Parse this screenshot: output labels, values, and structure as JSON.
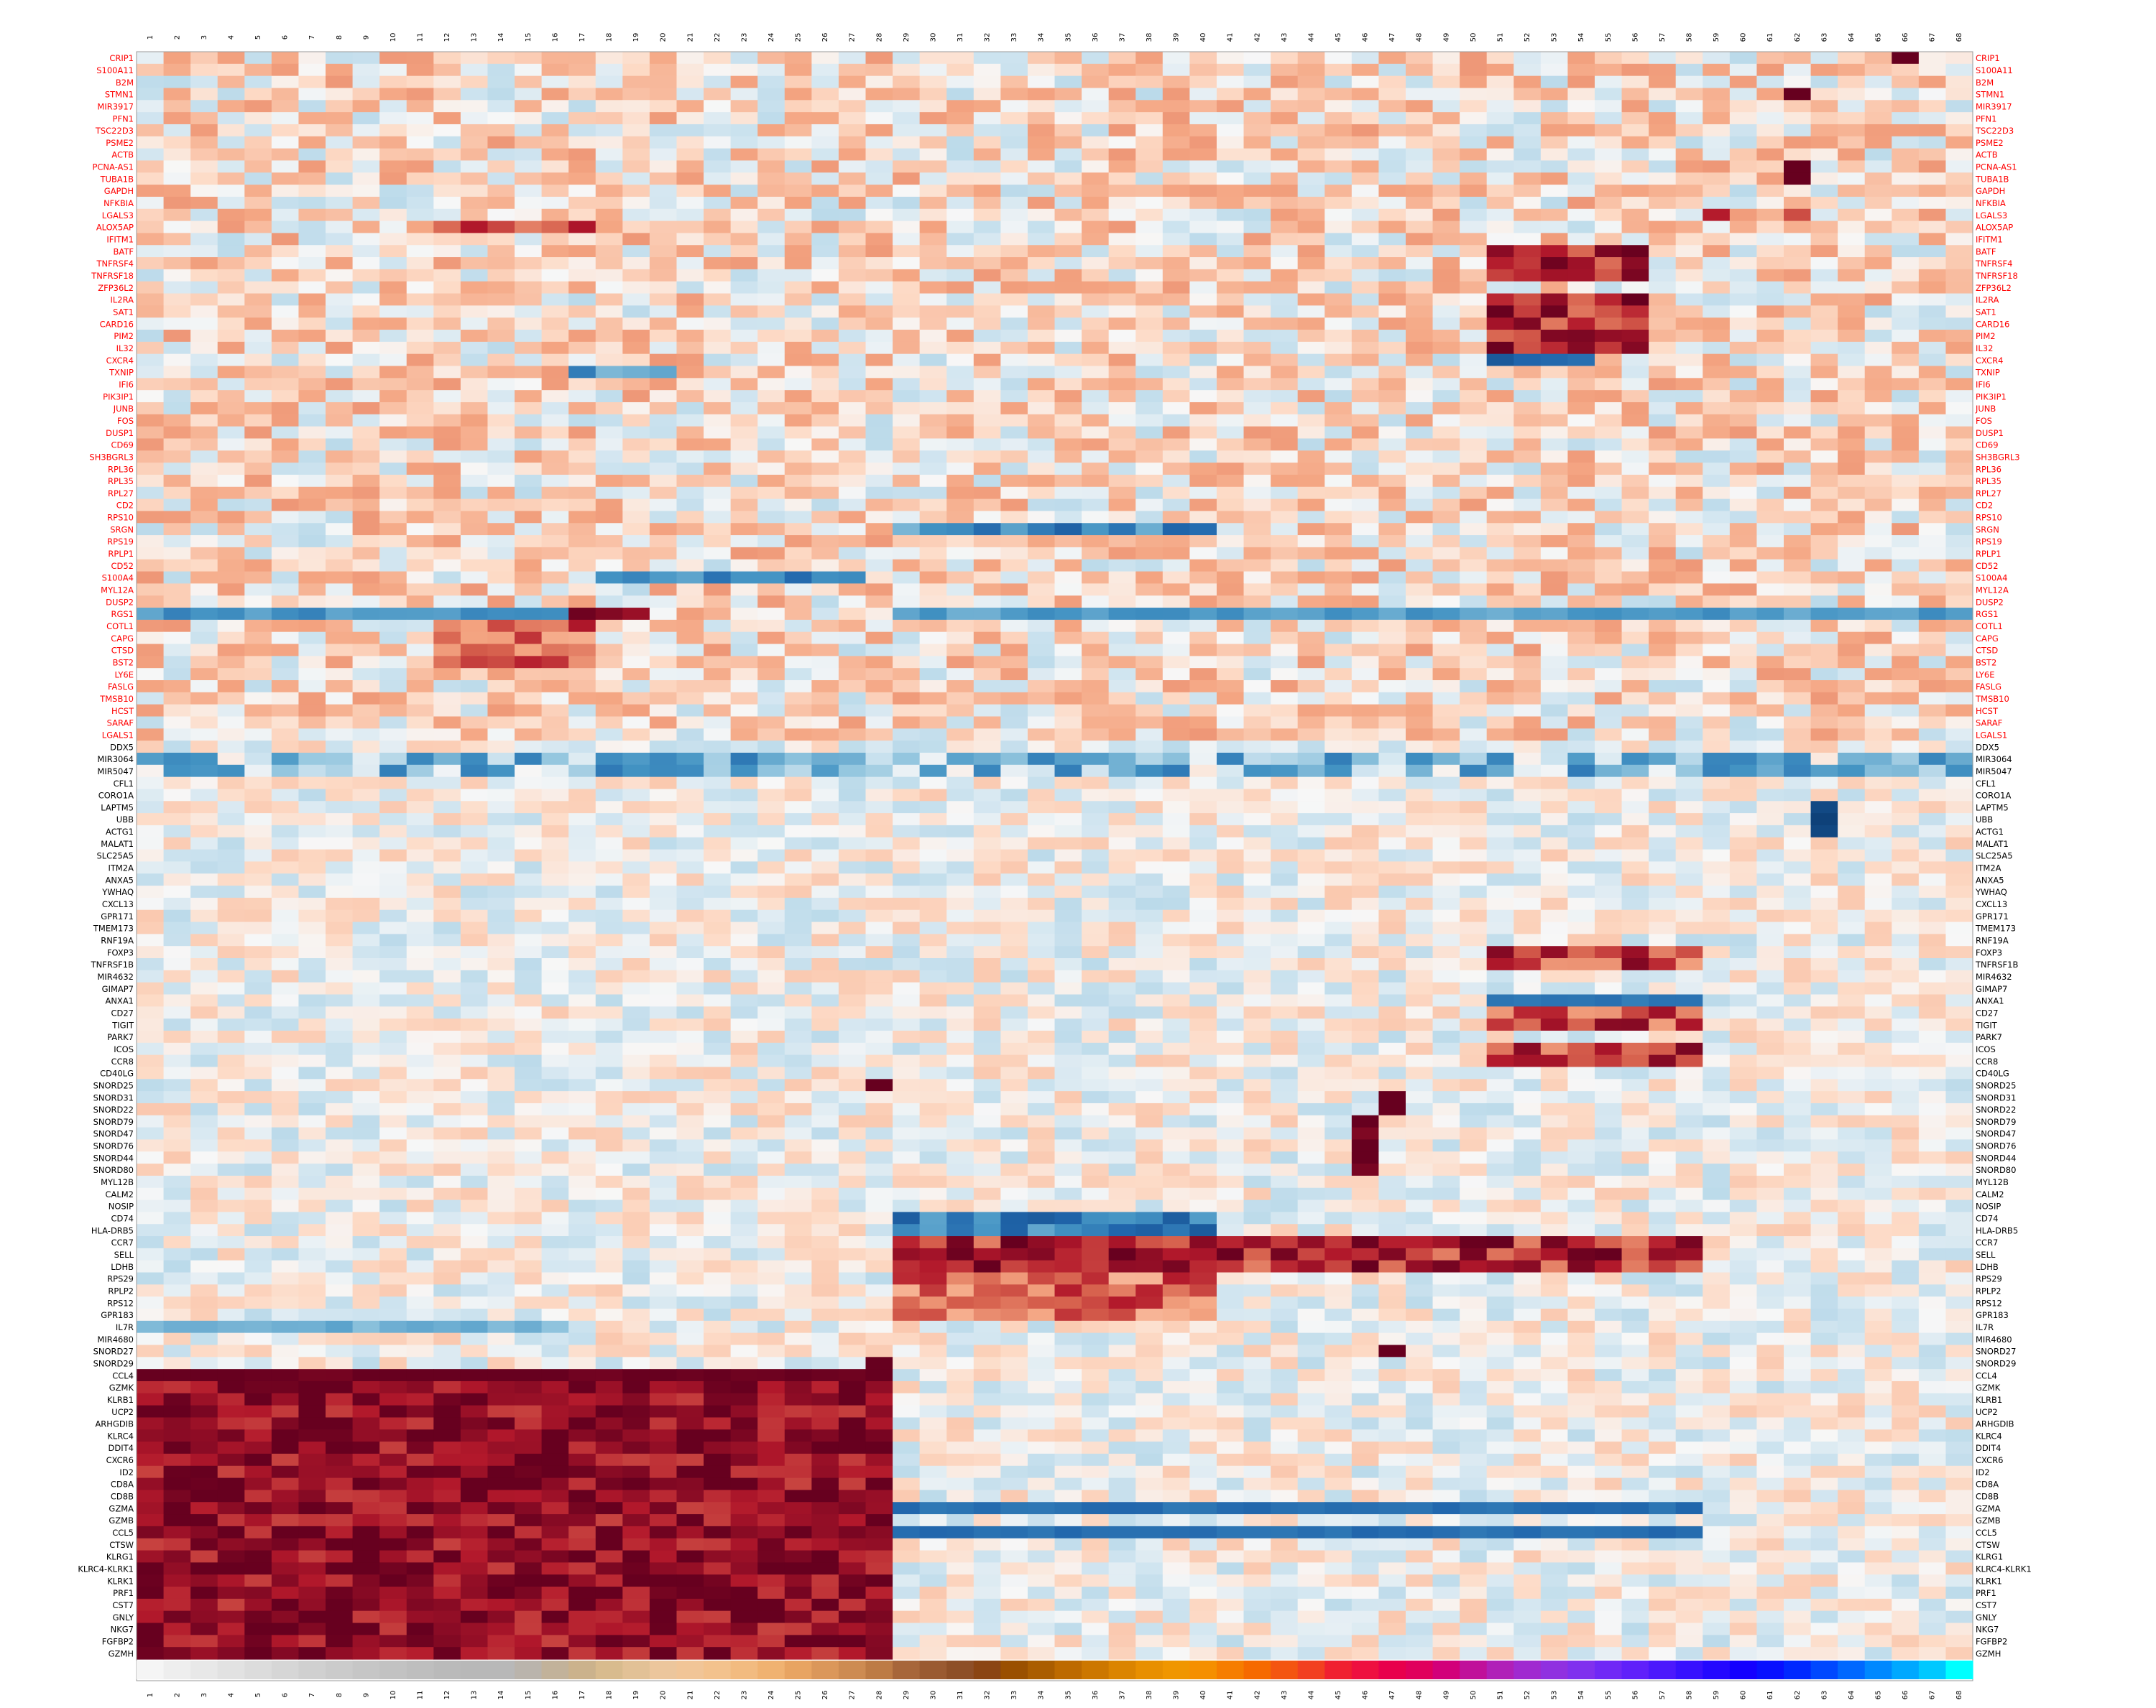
{
  "chart_data": {
    "type": "heatmap",
    "title": "",
    "xlabel": "",
    "ylabel": "",
    "columns": [
      "1",
      "2",
      "3",
      "4",
      "5",
      "6",
      "7",
      "8",
      "9",
      "10",
      "11",
      "12",
      "13",
      "14",
      "15",
      "16",
      "17",
      "18",
      "19",
      "20",
      "21",
      "22",
      "23",
      "24",
      "25",
      "26",
      "27",
      "28",
      "29",
      "30",
      "31",
      "32",
      "33",
      "34",
      "35",
      "36",
      "37",
      "38",
      "39",
      "40",
      "41",
      "42",
      "43",
      "44",
      "45",
      "46",
      "47",
      "48",
      "49",
      "50",
      "51",
      "52",
      "53",
      "54",
      "55",
      "56",
      "57",
      "58",
      "59",
      "60",
      "61",
      "62",
      "63",
      "64",
      "65",
      "66",
      "67",
      "68"
    ],
    "genes_red": [
      "CRIP1",
      "S100A11",
      "B2M",
      "STMN1",
      "MIR3917",
      "PFN1",
      "TSC22D3",
      "PSME2",
      "ACTB",
      "PCNA-AS1",
      "TUBA1B",
      "GAPDH",
      "NFKBIA",
      "LGALS3",
      "ALOX5AP",
      "IFITM1",
      "BATF",
      "TNFRSF4",
      "TNFRSF18",
      "ZFP36L2",
      "IL2RA",
      "SAT1",
      "CARD16",
      "PIM2",
      "IL32",
      "CXCR4",
      "TXNIP",
      "IFI6",
      "PIK3IP1",
      "JUNB",
      "FOS",
      "DUSP1",
      "CD69",
      "SH3BGRL3",
      "RPL36",
      "RPL35",
      "RPL27",
      "CD2",
      "RPS10",
      "SRGN",
      "RPS19",
      "RPLP1",
      "CD52",
      "S100A4",
      "MYL12A",
      "DUSP2",
      "RGS1",
      "COTL1",
      "CAPG",
      "CTSD",
      "BST2",
      "LY6E",
      "FASLG",
      "TMSB10",
      "HCST",
      "SARAF",
      "LGALS1"
    ],
    "genes_black": [
      "DDX5",
      "MIR3064",
      "MIR5047",
      "CFL1",
      "CORO1A",
      "LAPTM5",
      "UBB",
      "ACTG1",
      "MALAT1",
      "SLC25A5",
      "ITM2A",
      "ANXA5",
      "YWHAQ",
      "CXCL13",
      "GPR171",
      "TMEM173",
      "RNF19A",
      "FOXP3",
      "TNFRSF1B",
      "MIR4632",
      "GIMAP7",
      "ANXA1",
      "CD27",
      "TIGIT",
      "PARK7",
      "ICOS",
      "CCR8",
      "CD40LG",
      "SNORD25",
      "SNORD31",
      "SNORD22",
      "SNORD79",
      "SNORD47",
      "SNORD76",
      "SNORD44",
      "SNORD80",
      "MYL12B",
      "CALM2",
      "NOSIP",
      "CD74",
      "HLA-DRB5",
      "CCR7",
      "SELL",
      "LDHB",
      "RPS29",
      "RPLP2",
      "RPS12",
      "GPR183",
      "IL7R",
      "MIR4680",
      "SNORD27",
      "SNORD29",
      "CCL4",
      "GZMK",
      "KLRB1",
      "UCP2",
      "ARHGDIB",
      "KLRC4",
      "DDIT4",
      "CXCR6",
      "ID2",
      "CD8A",
      "CD8B",
      "GZMA",
      "GZMB",
      "CCL5",
      "CTSW",
      "KLRG1",
      "KLRC4-KLRK1",
      "KLRK1",
      "PRF1",
      "CST7",
      "GNLY",
      "NKG7",
      "FGFBP2",
      "GZMH"
    ],
    "color_scale": {
      "low": "#053061",
      "mid": "#f7f7f7",
      "high": "#67001f"
    },
    "label_colors": {
      "upper_block": "#ff0000",
      "lower_block": "#000000"
    },
    "annotation_bar_colors": [
      "#f5f5f5",
      "#eeeeee",
      "#e8e8e8",
      "#e2e2e2",
      "#dcdcdc",
      "#d6d6d6",
      "#d0d0d0",
      "#cbcbcb",
      "#c6c6c6",
      "#c2c2c2",
      "#bebebe",
      "#bababa",
      "#b8b8b8",
      "#b8b8b8",
      "#bab4ac",
      "#c2b29a",
      "#cbb28c",
      "#d8bb8e",
      "#e2c196",
      "#ecc69c",
      "#f1c597",
      "#f3c28d",
      "#f2bb80",
      "#f0b271",
      "#e8a462",
      "#db975a",
      "#cd8b52",
      "#bd7b45",
      "#a7663a",
      "#9a5a31",
      "#8e4f27",
      "#8b4513",
      "#9a5000",
      "#aa5d00",
      "#bd6a00",
      "#cc7700",
      "#db8400",
      "#e88f00",
      "#f09600",
      "#f58f00",
      "#f67d00",
      "#f66a00",
      "#f45510",
      "#f24020",
      "#f02030",
      "#ee1040",
      "#e8004c",
      "#e0005c",
      "#d2007a",
      "#c0109a",
      "#b020b8",
      "#a02ad0",
      "#9030e0",
      "#8030ee",
      "#7028f6",
      "#6020fa",
      "#4c18fc",
      "#3810fe",
      "#2408ff",
      "#1400ff",
      "#0810ff",
      "#0028ff",
      "#0048ff",
      "#0068ff",
      "#0088ff",
      "#00a8ff",
      "#00c8ff",
      "#00ffff"
    ],
    "blocks": [
      {
        "region": "rows CRIP1–LGALS1, columns 1–68",
        "pattern": "mostly light red/white with scattered blue; strong red in cols 51–56 for BATF–IL32; blue band on RGS1 in cols 1–16 and 29–68"
      },
      {
        "region": "rows ANXA1–CCR8, columns 51–58",
        "pattern": "dark blue band on ANXA1; dark red on CD27, TIGIT, ICOS, CCR8"
      },
      {
        "region": "rows SNORD25–SNORD80",
        "pattern": "near white except dark red in column 28 (SNORD25) and columns 46–47 (SNORD31–SNORD80)"
      },
      {
        "region": "rows NOSIP–IL7R, columns 29–68",
        "pattern": "blue on CD74/HLA-DRB5 in cols 29–40; dark red on CCR7/SELL/LDHB in cols 29–58"
      },
      {
        "region": "rows CCL4–GZMH, columns 1–28",
        "pattern": "dark red (high) cytotoxic genes; light blue/white in columns 29–68 with blue bands on GZMA and CCL5"
      }
    ]
  }
}
